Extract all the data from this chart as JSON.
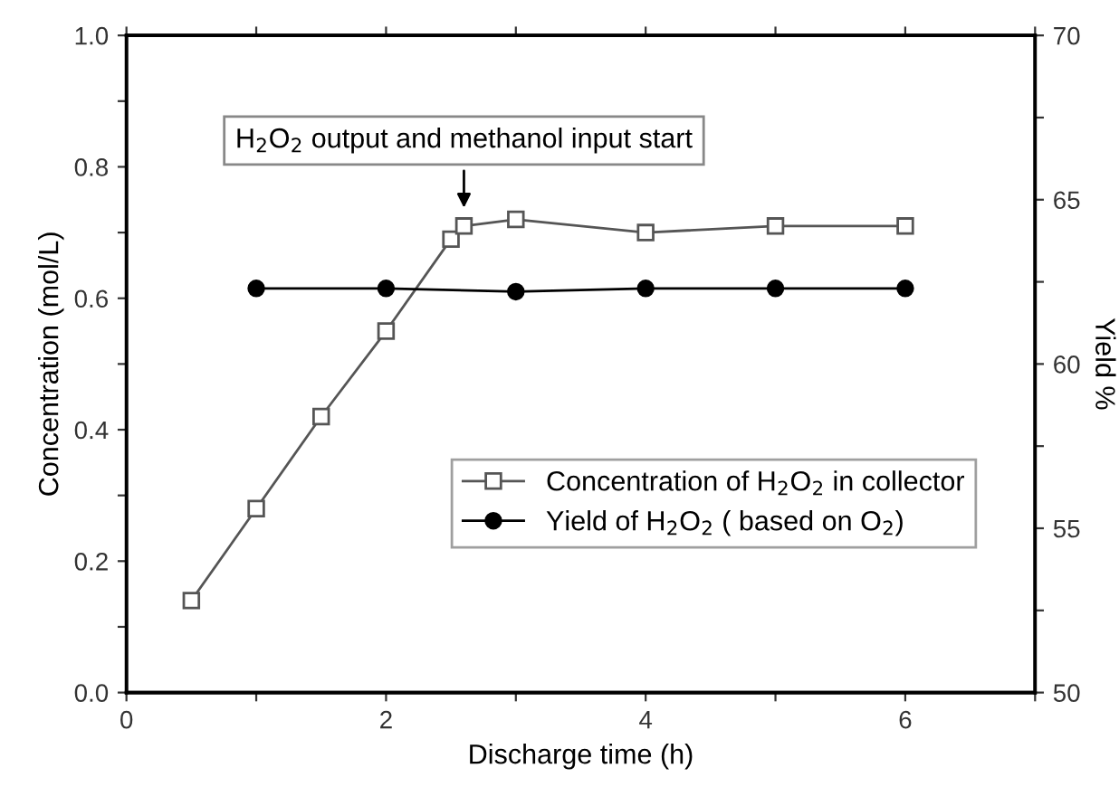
{
  "chart_data": {
    "type": "line",
    "xlabel": "Discharge time (h)",
    "ylabel": "Concentration (mol/L)",
    "y2label": "Yield %",
    "annotations": [
      {
        "text": "H$_{2}$O$_{2}$ output and methanol input start",
        "x": 2.6,
        "y": 0.73
      }
    ],
    "series": [
      {
        "name": "Concentration of H$_{2}$O$_{2}$ in collector",
        "color": "#555555",
        "marker": "square",
        "x": [
          0.5,
          1,
          1.5,
          2,
          2.5,
          2.6,
          3,
          4,
          5,
          6
        ],
        "values": [
          0.14,
          0.28,
          0.42,
          0.55,
          0.69,
          0.71,
          0.72,
          0.7,
          0.71,
          0.71
        ]
      },
      {
        "name": "Yield of H$_{2}$O$_{2}$ ( based on O$_{2}$)",
        "color": "#000000",
        "marker": "circle",
        "axis": "y2",
        "x": [
          1,
          2,
          3,
          4,
          5,
          6
        ],
        "values": [
          62.3,
          62.3,
          62.2,
          62.3,
          62.3,
          62.3
        ]
      }
    ],
    "xlim": [
      0,
      7
    ],
    "xticks": [
      0,
      {
        "value": 1,
        "label": null
      },
      2,
      {
        "value": 3,
        "label": null
      },
      4,
      {
        "value": 5,
        "label": null
      },
      6,
      {
        "value": 7,
        "label": null
      }
    ],
    "ylim": [
      0,
      1
    ],
    "yticks": [
      {
        "value": 0,
        "label": "0.0"
      },
      {
        "value": 0.1,
        "label": null
      },
      0.2,
      {
        "value": 0.3,
        "label": null
      },
      0.4,
      {
        "value": 0.5,
        "label": null
      },
      0.6,
      {
        "value": 0.7,
        "label": null
      },
      0.8,
      {
        "value": 0.9,
        "label": null
      },
      {
        "value": 1,
        "label": "1.0"
      }
    ],
    "y2lim": [
      50,
      70
    ],
    "y2ticks": [
      50,
      {
        "value": 52.5,
        "label": null
      },
      55,
      {
        "value": 57.5,
        "label": null
      },
      60,
      {
        "value": 62.5,
        "label": null
      },
      65,
      {
        "value": 67.5,
        "label": null
      },
      70
    ],
    "legend": "lower right",
    "grid": false,
    "line_style": "solid"
  }
}
